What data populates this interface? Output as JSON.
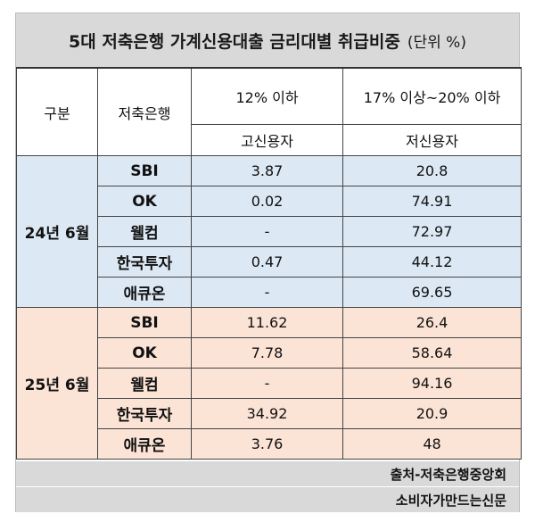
{
  "title": {
    "main": "5대 저축은행 가계신용대출 금리대별 취급비중",
    "unit": "(단위 %)"
  },
  "headers": {
    "category": "구분",
    "bank": "저축은행",
    "rate_low": "12% 이하",
    "rate_high": "17% 이상~20% 이하",
    "borrower_low": "고신용자",
    "borrower_high": "저신용자"
  },
  "groups": [
    {
      "period": "24년 6월",
      "rows": [
        {
          "bank": "SBI",
          "low": "3.87",
          "high": "20.8"
        },
        {
          "bank": "OK",
          "low": "0.02",
          "high": "74.91"
        },
        {
          "bank": "웰컴",
          "low": "-",
          "high": "72.97"
        },
        {
          "bank": "한국투자",
          "low": "0.47",
          "high": "44.12"
        },
        {
          "bank": "애큐온",
          "low": "-",
          "high": "69.65"
        }
      ]
    },
    {
      "period": "25년 6월",
      "rows": [
        {
          "bank": "SBI",
          "low": "11.62",
          "high": "26.4"
        },
        {
          "bank": "OK",
          "low": "7.78",
          "high": "58.64"
        },
        {
          "bank": "웰컴",
          "low": "-",
          "high": "94.16"
        },
        {
          "bank": "한국투자",
          "low": "34.92",
          "high": "20.9"
        },
        {
          "bank": "애큐온",
          "low": "3.76",
          "high": "48"
        }
      ]
    }
  ],
  "footer": {
    "source": "출처-저축은행중앙회",
    "publisher": "소비자가만드는신문"
  },
  "colors": {
    "header_gray": "#d9d9d9",
    "group1_bg": "#dce8f4",
    "group2_bg": "#fbe3d6"
  }
}
